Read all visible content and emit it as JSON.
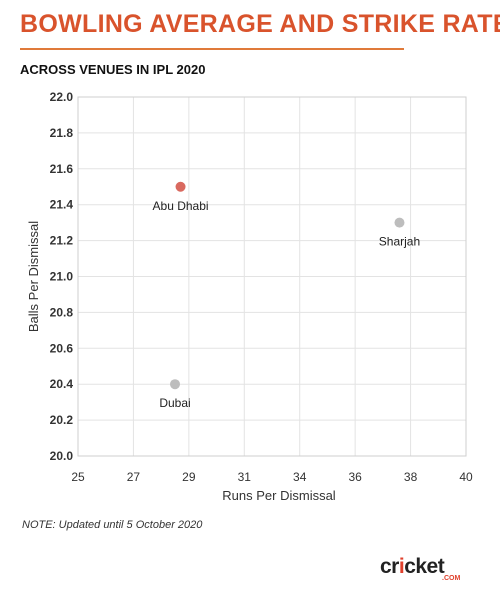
{
  "title": "BOWLING AVERAGE AND STRIKE RATE",
  "subtitle": "ACROSS VENUES IN IPL 2020",
  "note": "NOTE: Updated until 5 October 2020",
  "logo": {
    "word": "cricket",
    "suffix": ".COM"
  },
  "colors": {
    "title": "#d9532c",
    "highlight": "#d9695f",
    "point": "#bdbdbd"
  },
  "chart_data": {
    "type": "scatter",
    "xlabel": "Runs Per Dismissal",
    "ylabel": "Balls Per Dismissal",
    "x_ticks": [
      "25",
      "27",
      "29",
      "31",
      "34",
      "36",
      "38",
      "40"
    ],
    "y_ticks": [
      "20.0",
      "20.2",
      "20.4",
      "20.6",
      "20.8",
      "21.0",
      "21.2",
      "21.4",
      "21.6",
      "21.8",
      "22.0"
    ],
    "ylim": [
      20.0,
      22.0
    ],
    "grid": true,
    "points": [
      {
        "label": "Abu Dhabi",
        "x": 28.7,
        "y": 21.5,
        "highlight": true
      },
      {
        "label": "Sharjah",
        "x": 37.6,
        "y": 21.3,
        "highlight": false
      },
      {
        "label": "Dubai",
        "x": 28.5,
        "y": 20.4,
        "highlight": false
      }
    ]
  }
}
